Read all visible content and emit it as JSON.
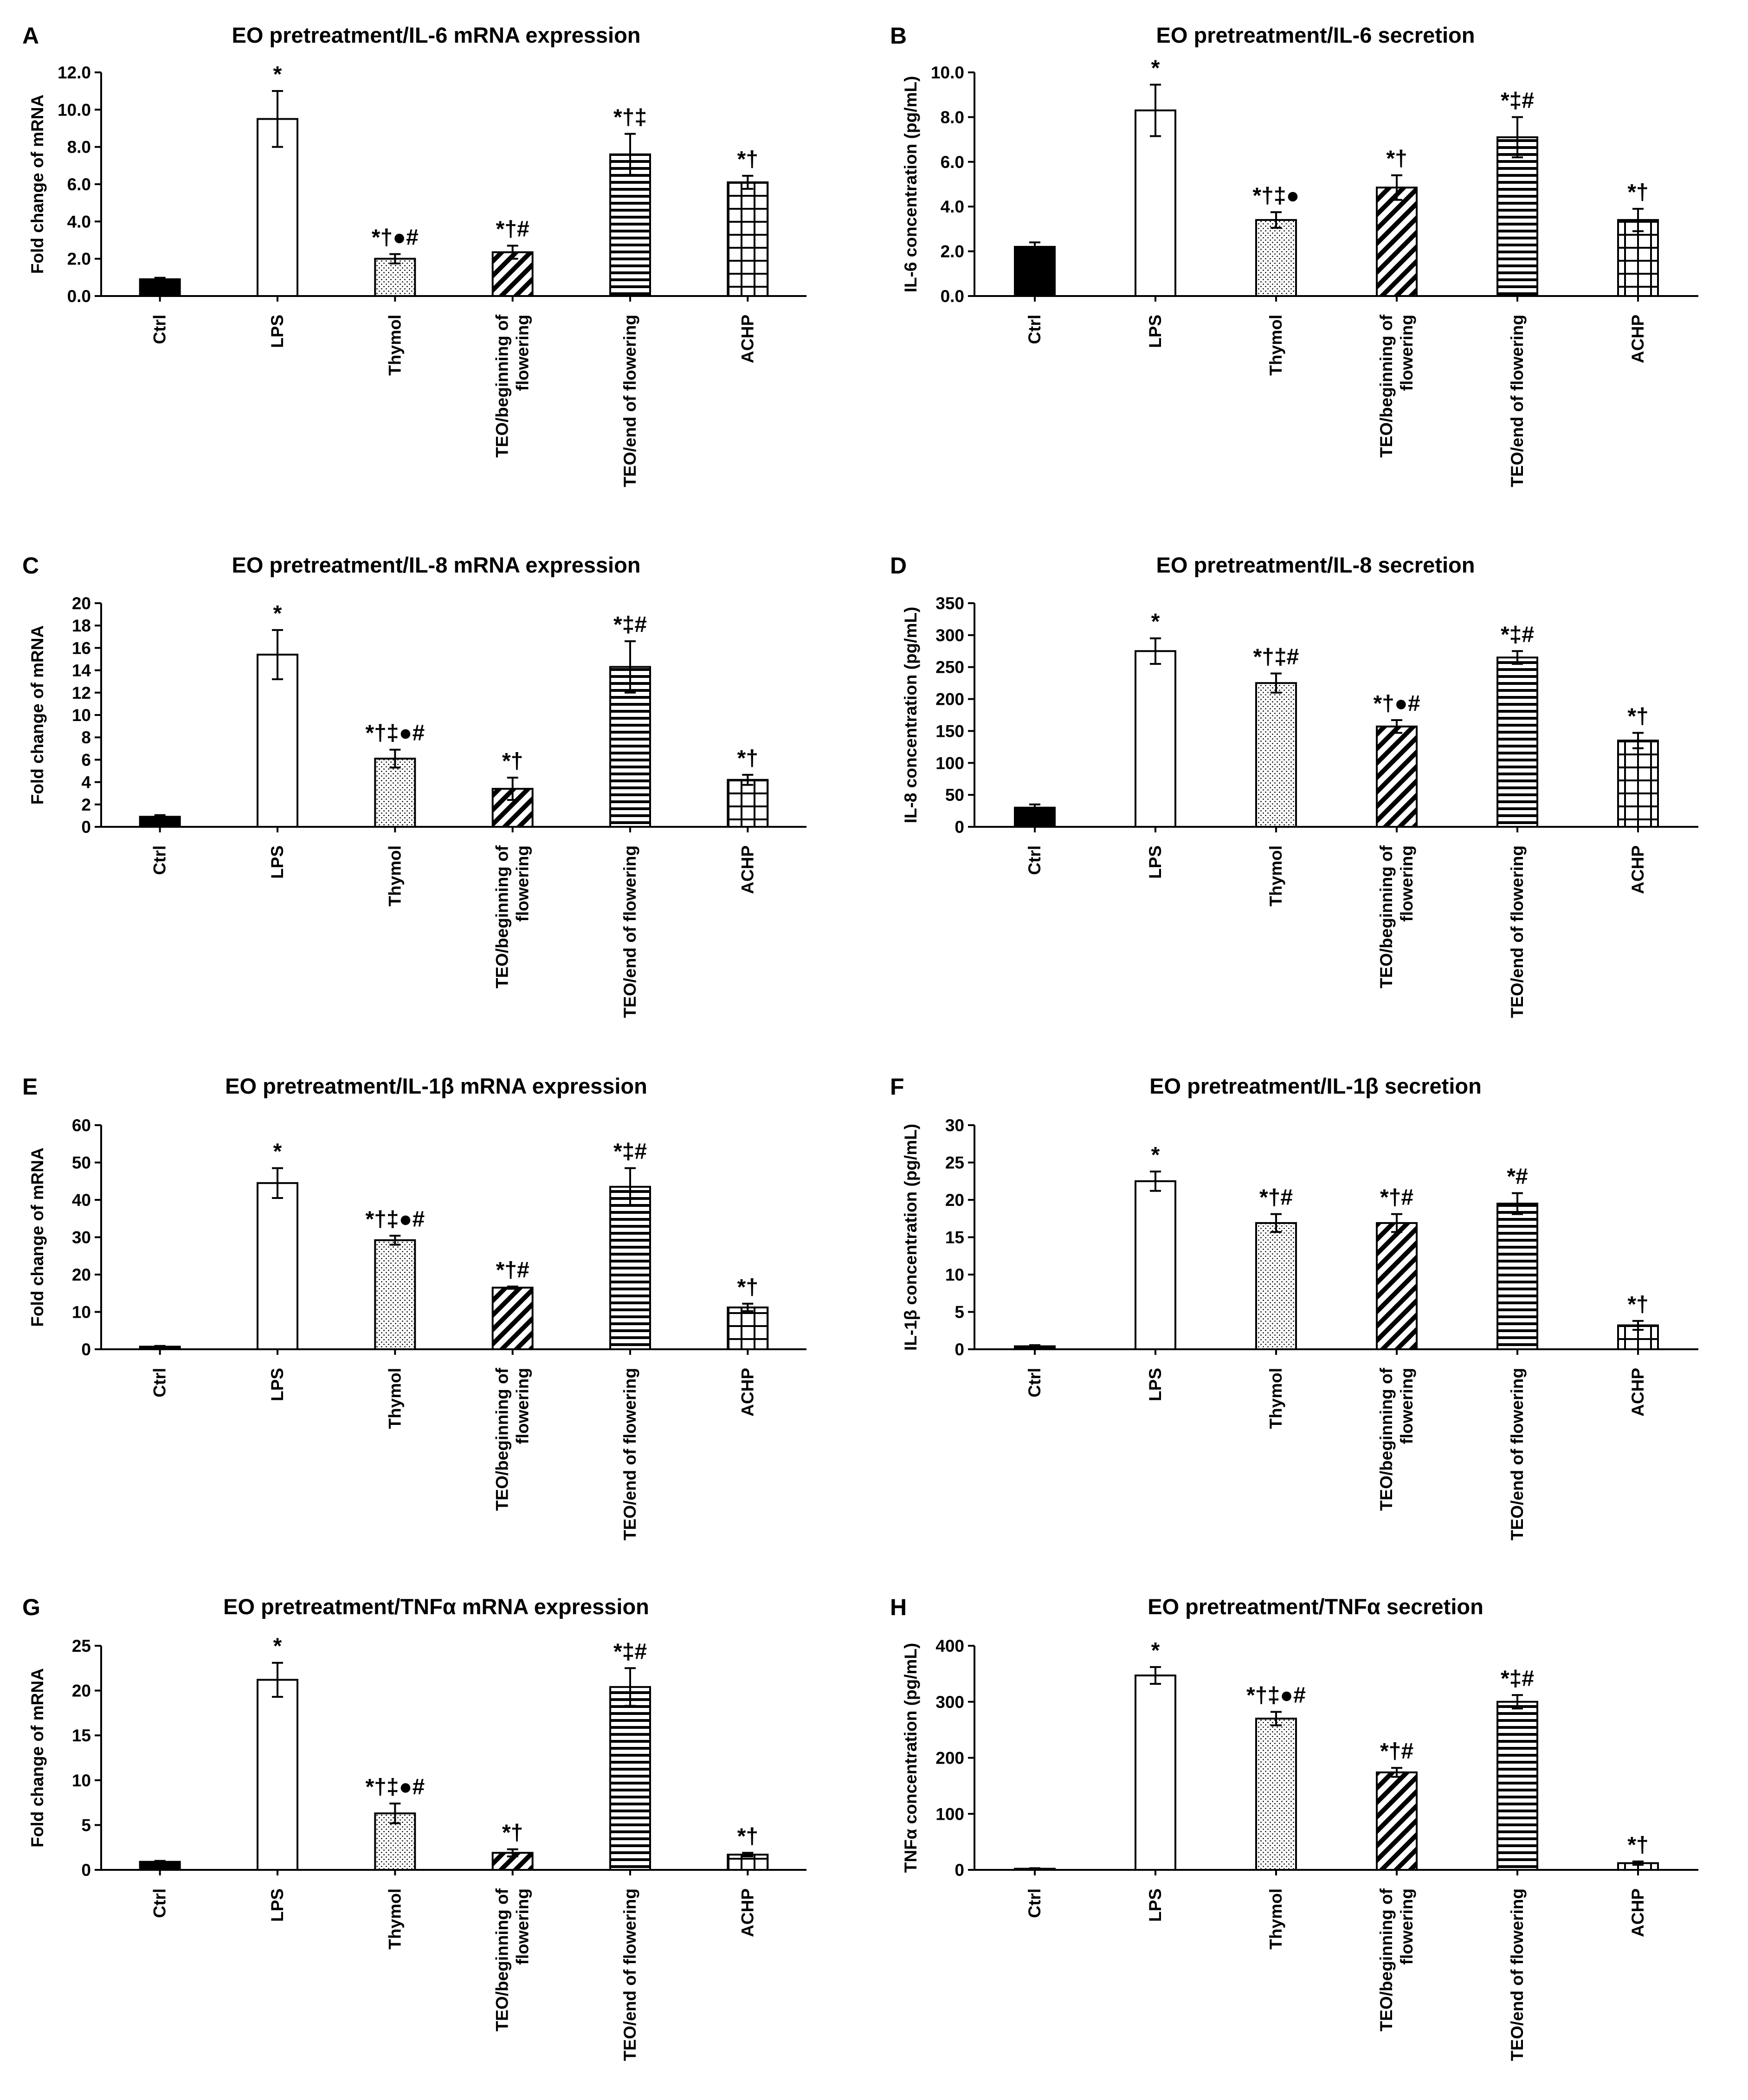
{
  "categories_display": [
    "Ctrl",
    "LPS",
    "Thymol",
    "TEO/beginning of flowering",
    "TEO/end of flowering",
    "ACHP"
  ],
  "bar_patterns": [
    "solid",
    "white",
    "dots",
    "diagonal",
    "horizontal",
    "grid"
  ],
  "colors": {
    "ink": "#000000",
    "background": "#ffffff"
  },
  "chart_data": [
    {
      "panel": "A",
      "type": "bar",
      "title": "EO pretreatment/IL-6 mRNA expression",
      "ylabel": "Fold change of mRNA",
      "categories": [
        "Ctrl",
        "LPS",
        "Thymol",
        "TEO/beginning of flowering",
        "TEO/end of flowering",
        "ACHP"
      ],
      "values": [
        0.9,
        9.5,
        2.0,
        2.35,
        7.6,
        6.1
      ],
      "errors": [
        0.08,
        1.5,
        0.25,
        0.35,
        1.1,
        0.35
      ],
      "annotations": [
        "",
        "*",
        "*†●#",
        "*†#",
        "*†‡",
        "*†"
      ],
      "ylim": [
        0,
        12
      ],
      "yticks": [
        0,
        2,
        4,
        6,
        8,
        10,
        12
      ],
      "decimals": 1
    },
    {
      "panel": "B",
      "type": "bar",
      "title": "EO pretreatment/IL-6 secretion",
      "ylabel": "IL-6 concentration (pg/mL)",
      "categories": [
        "Ctrl",
        "LPS",
        "Thymol",
        "TEO/beginning of flowering",
        "TEO/end of flowering",
        "ACHP"
      ],
      "values": [
        2.2,
        8.3,
        3.4,
        4.85,
        7.1,
        3.4
      ],
      "errors": [
        0.2,
        1.15,
        0.35,
        0.55,
        0.9,
        0.5
      ],
      "annotations": [
        "",
        "*",
        "*†‡●",
        "*†",
        "*‡#",
        "*†"
      ],
      "ylim": [
        0,
        10
      ],
      "yticks": [
        0,
        2,
        4,
        6,
        8,
        10
      ],
      "decimals": 1
    },
    {
      "panel": "C",
      "type": "bar",
      "title": "EO pretreatment/IL-8 mRNA expression",
      "ylabel": "Fold change of mRNA",
      "categories": [
        "Ctrl",
        "LPS",
        "Thymol",
        "TEO/beginning of flowering",
        "TEO/end of flowering",
        "ACHP"
      ],
      "values": [
        0.9,
        15.4,
        6.1,
        3.4,
        14.3,
        4.2
      ],
      "errors": [
        0.15,
        2.2,
        0.8,
        1.0,
        2.3,
        0.45
      ],
      "annotations": [
        "",
        "*",
        "*†‡●#",
        "*†",
        "*‡#",
        "*†"
      ],
      "ylim": [
        0,
        20
      ],
      "yticks": [
        0,
        2,
        4,
        6,
        8,
        10,
        12,
        14,
        16,
        18,
        20
      ],
      "decimals": 0
    },
    {
      "panel": "D",
      "type": "bar",
      "title": "EO pretreatment/IL-8 secretion",
      "ylabel": "IL-8 concentration (pg/mL)",
      "categories": [
        "Ctrl",
        "LPS",
        "Thymol",
        "TEO/beginning of flowering",
        "TEO/end of flowering",
        "ACHP"
      ],
      "values": [
        30,
        275,
        225,
        157,
        265,
        135
      ],
      "errors": [
        5,
        20,
        15,
        10,
        10,
        12
      ],
      "annotations": [
        "",
        "*",
        "*†‡#",
        "*†●#",
        "*‡#",
        "*†"
      ],
      "ylim": [
        0,
        350
      ],
      "yticks": [
        0,
        50,
        100,
        150,
        200,
        250,
        300,
        350
      ],
      "decimals": 0
    },
    {
      "panel": "E",
      "type": "bar",
      "title": "EO pretreatment/IL-1β mRNA expression",
      "ylabel": "Fold change of mRNA",
      "categories": [
        "Ctrl",
        "LPS",
        "Thymol",
        "TEO/beginning of flowering",
        "TEO/end of flowering",
        "ACHP"
      ],
      "values": [
        0.7,
        44.5,
        29.2,
        16.5,
        43.5,
        11.2
      ],
      "errors": [
        0.2,
        4.0,
        1.2,
        0.3,
        5.0,
        1.0
      ],
      "annotations": [
        "",
        "*",
        "*†‡●#",
        "*†#",
        "*‡#",
        "*†"
      ],
      "ylim": [
        0,
        60
      ],
      "yticks": [
        0,
        10,
        20,
        30,
        40,
        50,
        60
      ],
      "decimals": 0
    },
    {
      "panel": "F",
      "type": "bar",
      "title": "EO pretreatment/IL-1β secretion",
      "ylabel": "IL-1β concentration (pg/mL)",
      "categories": [
        "Ctrl",
        "LPS",
        "Thymol",
        "TEO/beginning of flowering",
        "TEO/end of flowering",
        "ACHP"
      ],
      "values": [
        0.4,
        22.5,
        16.9,
        16.9,
        19.5,
        3.2
      ],
      "errors": [
        0.15,
        1.3,
        1.2,
        1.2,
        1.4,
        0.6
      ],
      "annotations": [
        "",
        "*",
        "*†#",
        "*†#",
        "*#",
        "*†"
      ],
      "ylim": [
        0,
        30
      ],
      "yticks": [
        0,
        5,
        10,
        15,
        20,
        25,
        30
      ],
      "decimals": 0
    },
    {
      "panel": "G",
      "type": "bar",
      "title": "EO pretreatment/TNFα mRNA expression",
      "ylabel": "Fold change of mRNA",
      "categories": [
        "Ctrl",
        "LPS",
        "Thymol",
        "TEO/beginning of flowering",
        "TEO/end of flowering",
        "ACHP"
      ],
      "values": [
        0.9,
        21.2,
        6.3,
        1.9,
        20.4,
        1.7
      ],
      "errors": [
        0.1,
        1.9,
        1.1,
        0.4,
        2.1,
        0.2
      ],
      "annotations": [
        "",
        "*",
        "*†‡●#",
        "*†",
        "*‡#",
        "*†"
      ],
      "ylim": [
        0,
        25
      ],
      "yticks": [
        0,
        5,
        10,
        15,
        20,
        25
      ],
      "decimals": 0
    },
    {
      "panel": "H",
      "type": "bar",
      "title": "EO pretreatment/TNFα secretion",
      "ylabel": "TNFα concentration (pg/mL)",
      "categories": [
        "Ctrl",
        "LPS",
        "Thymol",
        "TEO/beginning of flowering",
        "TEO/end of flowering",
        "ACHP"
      ],
      "values": [
        2,
        347,
        270,
        174,
        300,
        12
      ],
      "errors": [
        1,
        15,
        12,
        8,
        12,
        3
      ],
      "annotations": [
        "",
        "*",
        "*†‡●#",
        "*†#",
        "*‡#",
        "*†"
      ],
      "ylim": [
        0,
        400
      ],
      "yticks": [
        0,
        100,
        200,
        300,
        400
      ],
      "decimals": 0
    }
  ]
}
